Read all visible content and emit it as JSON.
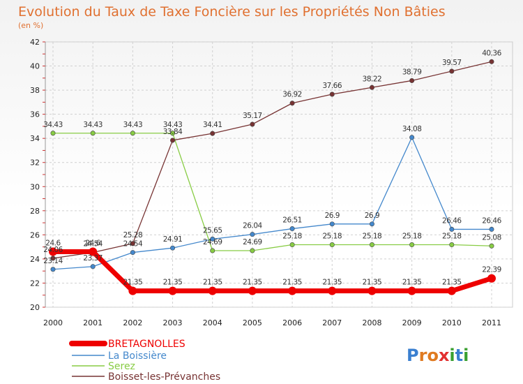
{
  "chart_data": {
    "type": "line",
    "title": "Evolution du Taux de Taxe Foncière sur les Propriétés Non Bâties",
    "subtitle": "(en %)",
    "x": [
      "2000",
      "2001",
      "2002",
      "2003",
      "2004",
      "2005",
      "2006",
      "2007",
      "2008",
      "2009",
      "2010",
      "2011"
    ],
    "ylim": [
      20,
      42
    ],
    "yticks": [
      20,
      22,
      24,
      26,
      28,
      30,
      32,
      34,
      36,
      38,
      40,
      42
    ],
    "grid": true,
    "legend_position": "bottom-left",
    "series": [
      {
        "name": "BRETAGNOLLES",
        "color": "#ee0000",
        "values": [
          24.6,
          24.6,
          21.35,
          21.35,
          21.35,
          21.35,
          21.35,
          21.35,
          21.35,
          21.35,
          21.35,
          22.39
        ],
        "labels": [
          "24.6",
          "24.6",
          "21.35",
          "21.35",
          "21.35",
          "21.35",
          "21.35",
          "21.35",
          "21.35",
          "21.35",
          "21.35",
          "22.39"
        ]
      },
      {
        "name": "La Boissière",
        "color": "#4488cc",
        "values": [
          23.14,
          23.37,
          24.54,
          24.91,
          25.65,
          26.04,
          26.51,
          26.9,
          26.9,
          34.08,
          26.46,
          26.46
        ],
        "labels": [
          "23.14",
          "23.37",
          "24.54",
          "24.91",
          "25.65",
          "26.04",
          "26.51",
          "26.9",
          "26.9",
          "34.08",
          "26.46",
          "26.46"
        ]
      },
      {
        "name": "Serez",
        "color": "#88cc44",
        "values": [
          34.43,
          34.43,
          34.43,
          34.43,
          24.69,
          24.69,
          25.18,
          25.18,
          25.18,
          25.18,
          25.18,
          25.08
        ],
        "labels": [
          "34.43",
          "34.43",
          "34.43",
          "34.43",
          "24.69",
          "24.69",
          "25.18",
          "25.18",
          "25.18",
          "25.18",
          "25.18",
          "25.08"
        ]
      },
      {
        "name": "Boisset-les-Prévanches",
        "color": "#773333",
        "values": [
          24.06,
          24.54,
          25.28,
          33.84,
          34.41,
          35.17,
          36.92,
          37.66,
          38.22,
          38.79,
          39.57,
          40.36
        ],
        "labels": [
          "24.06",
          "24.54",
          "25.28",
          "33.84",
          "34.41",
          "35.17",
          "36.92",
          "37.66",
          "38.22",
          "38.79",
          "39.57",
          "40.36"
        ]
      }
    ]
  },
  "logo": {
    "text": "Proxiti"
  }
}
